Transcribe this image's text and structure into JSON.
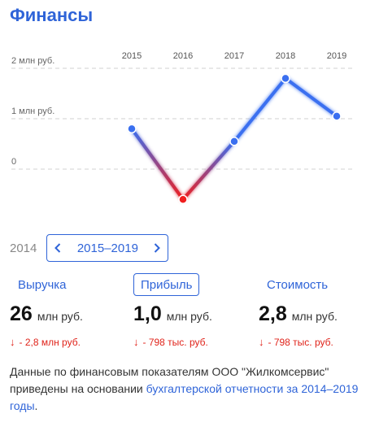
{
  "header": {
    "title": "Финансы"
  },
  "chart_data": {
    "type": "line",
    "x": [
      "2015",
      "2016",
      "2017",
      "2018",
      "2019"
    ],
    "series": [
      {
        "values": [
          0.8,
          -0.6,
          0.55,
          1.8,
          1.05
        ]
      }
    ],
    "y_ticks": [
      {
        "value": 2,
        "label": "2 млн руб."
      },
      {
        "value": 1,
        "label": "1 млн руб."
      },
      {
        "value": 0,
        "label": "0"
      }
    ],
    "ylim": [
      -0.7,
      2.2
    ],
    "grid": "dashed-horizontal",
    "colors": {
      "positive": "#3a6ff0",
      "negative": "#f01e1e",
      "grid": "#d0d0d0"
    }
  },
  "period": {
    "previous_year": "2014",
    "range_label": "2015–2019"
  },
  "tabs": [
    {
      "label": "Выручка",
      "active": false
    },
    {
      "label": "Прибыль",
      "active": true
    },
    {
      "label": "Стоимость",
      "active": false
    }
  ],
  "metrics": [
    {
      "value": "26",
      "unit": "млн руб.",
      "arrow": "↓",
      "delta": "- 2,8 млн руб."
    },
    {
      "value": "1,0",
      "unit": "млн руб.",
      "arrow": "↓",
      "delta": "- 798 тыс. руб."
    },
    {
      "value": "2,8",
      "unit": "млн руб.",
      "arrow": "↓",
      "delta": "- 798 тыс. руб."
    }
  ],
  "note": {
    "text": "Данные по финансовым показателям ООО \"Жилкомсервис\" приведены на основании ",
    "link": "бухгалтерской отчетности за 2014–2019 годы",
    "tail": "."
  }
}
